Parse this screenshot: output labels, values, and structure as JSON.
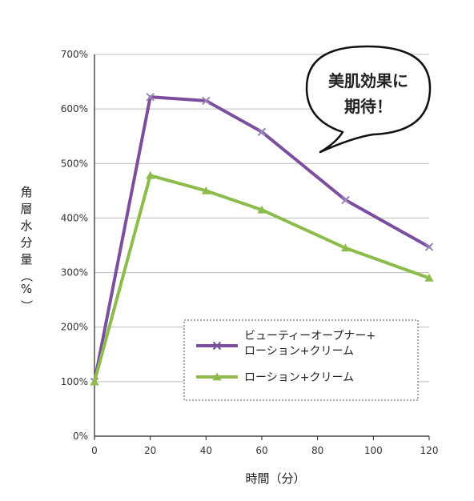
{
  "chart_data": {
    "type": "line",
    "x": [
      0,
      20,
      40,
      60,
      90,
      120
    ],
    "x_ticks": [
      "0",
      "20",
      "40",
      "60",
      "80",
      "100",
      "120"
    ],
    "y_ticks": [
      "0%",
      "100%",
      "200%",
      "300%",
      "400%",
      "500%",
      "600%",
      "700%"
    ],
    "xlim": [
      0,
      120
    ],
    "ylim": [
      0,
      700
    ],
    "xlabel": "時間（分）",
    "ylabel": "角層水分量（%）",
    "grid": true,
    "legend_position": "bottom-right",
    "series": [
      {
        "name_lines": [
          "ビューティーオープナー+",
          "ローション+クリーム"
        ],
        "values": [
          100,
          622,
          615,
          558,
          433,
          347
        ],
        "marker": "x",
        "color": "#7b4f9e"
      },
      {
        "name_lines": [
          "ローション+クリーム"
        ],
        "values": [
          100,
          478,
          450,
          415,
          345,
          290
        ],
        "marker": "triangle",
        "color": "#8dbb4c"
      }
    ],
    "annotation_lines": [
      "美肌効果に",
      "期待！"
    ]
  }
}
